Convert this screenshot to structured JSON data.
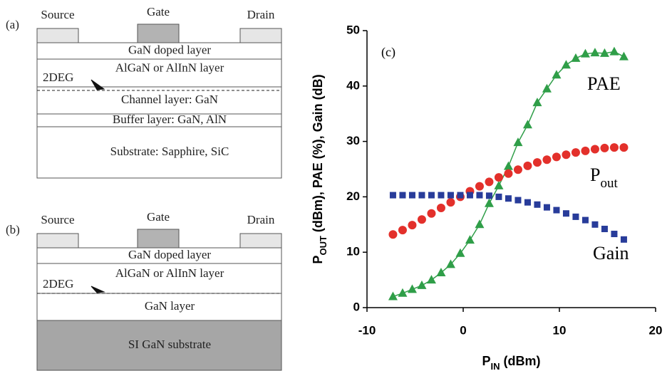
{
  "panels": [
    {
      "label": "(a)",
      "contacts": [
        "Source",
        "Gate",
        "Drain"
      ],
      "marker": "2DEG",
      "layers": [
        "GaN doped layer",
        "AlGaN or AlInN layer",
        "Channel  layer: GaN",
        "Buffer layer: GaN, AlN",
        "Substrate: Sapphire, SiC"
      ]
    },
    {
      "label": "(b)",
      "contacts": [
        "Source",
        "Gate",
        "Drain"
      ],
      "marker": "2DEG",
      "layers": [
        "GaN doped layer",
        "AlGaN or AlInN layer",
        "GaN  layer",
        "SI GaN  substrate"
      ]
    }
  ],
  "chart_data": {
    "type": "scatter",
    "panel_label": "(c)",
    "xlabel": {
      "main": "P",
      "sub": "IN",
      "rest": " (dBm)"
    },
    "ylabel": {
      "main": "P",
      "sub": "OUT",
      "rest": " (dBm), PAE (%), Gain (dB)"
    },
    "xlim": [
      -10,
      20
    ],
    "xticks": [
      -10,
      0,
      10,
      20
    ],
    "ylim": [
      0,
      50
    ],
    "yticks": [
      0,
      10,
      20,
      30,
      40,
      50
    ],
    "x": [
      -7.3,
      -6.3,
      -5.3,
      -4.3,
      -3.3,
      -2.3,
      -1.3,
      -0.3,
      0.7,
      1.7,
      2.7,
      3.7,
      4.7,
      5.7,
      6.7,
      7.7,
      8.7,
      9.7,
      10.7,
      11.7,
      12.7,
      13.7,
      14.7,
      15.7,
      16.7
    ],
    "series": [
      {
        "name": "PAE",
        "marker": "triangle",
        "color": "#2f9e48",
        "line": true,
        "values": [
          2.0,
          2.6,
          3.3,
          4.0,
          5.0,
          6.3,
          7.8,
          9.8,
          12.2,
          15.0,
          18.8,
          22.0,
          25.5,
          29.8,
          33.0,
          37.0,
          39.5,
          42.0,
          43.8,
          45.0,
          45.8,
          46.0,
          45.9,
          46.2,
          45.3
        ]
      },
      {
        "name": "P",
        "name_sub": "out",
        "marker": "circle",
        "color": "#e3302b",
        "values": [
          13.2,
          14.0,
          14.9,
          15.9,
          17.0,
          18.0,
          19.0,
          20.0,
          21.0,
          21.9,
          22.7,
          23.5,
          24.2,
          24.9,
          25.6,
          26.2,
          26.7,
          27.2,
          27.6,
          28.0,
          28.3,
          28.6,
          28.8,
          28.9,
          28.9
        ]
      },
      {
        "name": "Gain",
        "marker": "square",
        "color": "#283c9a",
        "values": [
          20.3,
          20.3,
          20.3,
          20.3,
          20.3,
          20.3,
          20.3,
          20.3,
          20.3,
          20.3,
          20.2,
          20.0,
          19.7,
          19.4,
          19.0,
          18.6,
          18.1,
          17.6,
          17.0,
          16.4,
          15.8,
          15.0,
          14.2,
          13.3,
          12.3
        ]
      }
    ]
  }
}
